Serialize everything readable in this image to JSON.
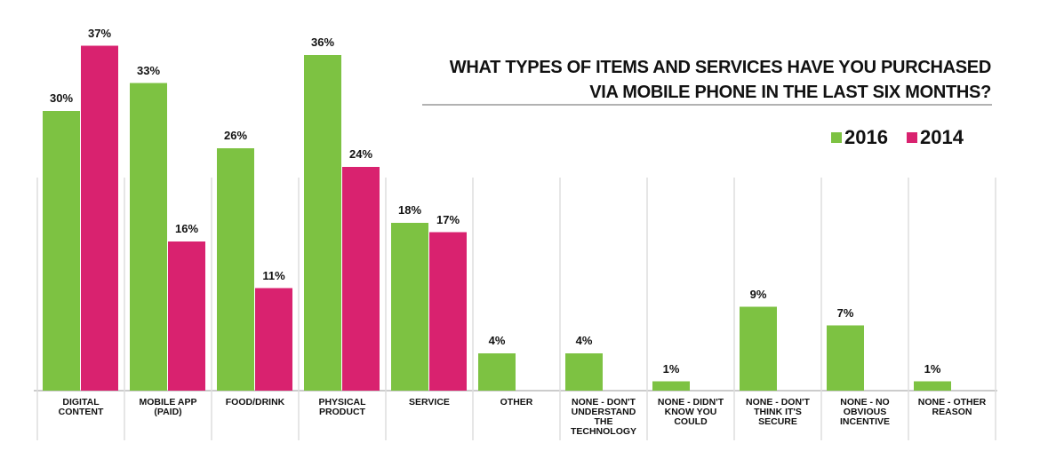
{
  "chart_data": {
    "type": "bar",
    "title": "WHAT TYPES OF ITEMS AND SERVICES HAVE YOU PURCHASED VIA MOBILE PHONE IN THE LAST SIX MONTHS?",
    "categories": [
      "DIGITAL CONTENT",
      "MOBILE APP (PAID)",
      "FOOD/DRINK",
      "PHYSICAL PRODUCT",
      "SERVICE",
      "OTHER",
      "NONE - DON'T UNDERSTAND THE TECHNOLOGY",
      "NONE - DIDN'T KNOW YOU COULD",
      "NONE - DON'T THINK IT'S SECURE",
      "NONE - NO OBVIOUS INCENTIVE",
      "NONE - OTHER REASON"
    ],
    "series": [
      {
        "name": "2016",
        "color": "#7dc242",
        "values": [
          30,
          33,
          26,
          36,
          18,
          4,
          4,
          1,
          9,
          7,
          1
        ],
        "value_labels": [
          "30%",
          "33%",
          "26%",
          "36%",
          "18%",
          "4%",
          "4%",
          "1%",
          "9%",
          "7%",
          "1%"
        ]
      },
      {
        "name": "2014",
        "color": "#d9226f",
        "values": [
          37,
          16,
          11,
          24,
          17,
          null,
          null,
          null,
          null,
          null,
          null
        ],
        "value_labels": [
          "37%",
          "16%",
          "11%",
          "24%",
          "17%",
          null,
          null,
          null,
          null,
          null,
          null
        ]
      }
    ],
    "legend": "top-right"
  }
}
